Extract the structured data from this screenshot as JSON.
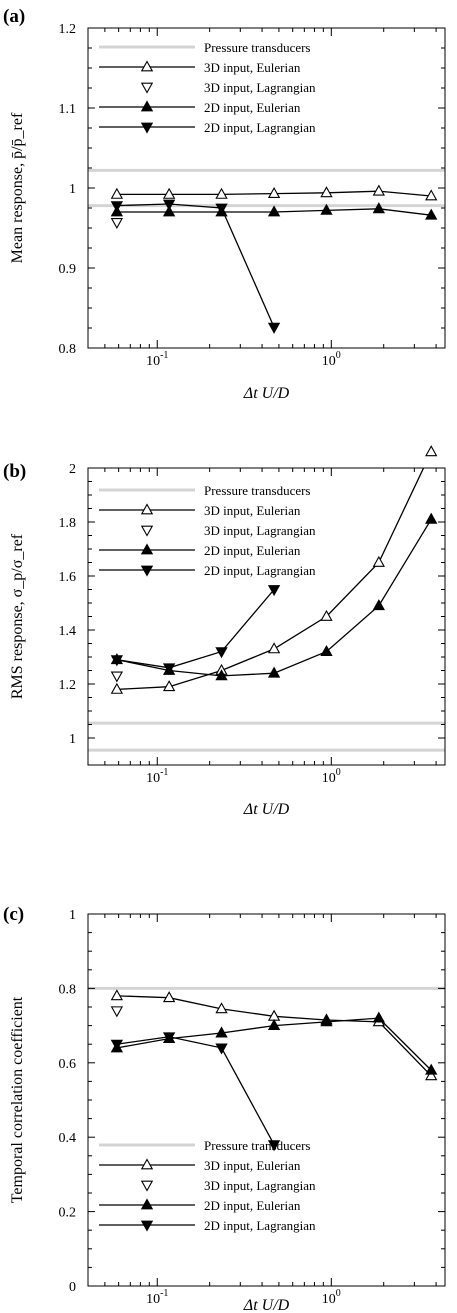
{
  "chart_data": [
    {
      "type": "line",
      "panel_label": "(a)",
      "xlabel": "Δt U/D",
      "ylabel": "Mean response, p̄/p̄_ref",
      "x_scale": "log",
      "xlim": [
        0.04,
        4.5
      ],
      "ylim": [
        0.8,
        1.2
      ],
      "yticks": [
        "0.8",
        "0.9",
        "1",
        "1.1",
        "1.2"
      ],
      "xticks": [
        {
          "value": 0.1,
          "base": "10",
          "exp": "-1"
        },
        {
          "value": 1,
          "base": "10",
          "exp": "0"
        }
      ],
      "reference_lines": [
        1.022,
        0.978
      ],
      "legend_position": "upper-left",
      "series": [
        {
          "name": "Pressure transducers",
          "marker": "none",
          "x": [],
          "y": []
        },
        {
          "name": "3D input, Eulerian",
          "marker": "triangle-up-open",
          "x": [
            0.0586,
            0.117,
            0.234,
            0.469,
            0.938,
            1.875,
            3.75
          ],
          "y": [
            0.992,
            0.992,
            0.992,
            0.993,
            0.994,
            0.996,
            0.99
          ]
        },
        {
          "name": "3D input, Lagrangian",
          "marker": "triangle-down-open",
          "x": [
            0.0586
          ],
          "y": [
            0.957
          ]
        },
        {
          "name": "2D input, Eulerian",
          "marker": "triangle-up-filled",
          "x": [
            0.0586,
            0.117,
            0.234,
            0.469,
            0.938,
            1.875,
            3.75
          ],
          "y": [
            0.97,
            0.97,
            0.97,
            0.97,
            0.972,
            0.974,
            0.966
          ]
        },
        {
          "name": "2D input, Lagrangian",
          "marker": "triangle-down-filled",
          "x": [
            0.0586,
            0.117,
            0.234,
            0.469
          ],
          "y": [
            0.978,
            0.98,
            0.975,
            0.826
          ]
        }
      ]
    },
    {
      "type": "line",
      "panel_label": "(b)",
      "xlabel": "Δt U/D",
      "ylabel": "RMS response, σ_p/σ_ref",
      "x_scale": "log",
      "xlim": [
        0.04,
        4.5
      ],
      "ylim": [
        0.9,
        2.0
      ],
      "yticks": [
        "1",
        "1.2",
        "1.4",
        "1.6",
        "1.8",
        "2"
      ],
      "xticks": [
        {
          "value": 0.1,
          "base": "10",
          "exp": "-1"
        },
        {
          "value": 1,
          "base": "10",
          "exp": "0"
        }
      ],
      "reference_lines": [
        1.055,
        0.955
      ],
      "legend_position": "upper-left",
      "series": [
        {
          "name": "Pressure transducers",
          "marker": "none",
          "x": [],
          "y": []
        },
        {
          "name": "3D input, Eulerian",
          "marker": "triangle-up-open",
          "x": [
            0.0586,
            0.117,
            0.234,
            0.469,
            0.938,
            1.875,
            3.75
          ],
          "y": [
            1.18,
            1.19,
            1.25,
            1.33,
            1.45,
            1.65,
            2.06
          ]
        },
        {
          "name": "3D input, Lagrangian",
          "marker": "triangle-down-open",
          "x": [
            0.0586
          ],
          "y": [
            1.23
          ]
        },
        {
          "name": "2D input, Eulerian",
          "marker": "triangle-up-filled",
          "x": [
            0.0586,
            0.117,
            0.234,
            0.469,
            0.938,
            1.875,
            3.75
          ],
          "y": [
            1.29,
            1.25,
            1.23,
            1.24,
            1.32,
            1.49,
            1.81
          ]
        },
        {
          "name": "2D input, Lagrangian",
          "marker": "triangle-down-filled",
          "x": [
            0.0586,
            0.117,
            0.234,
            0.469
          ],
          "y": [
            1.29,
            1.26,
            1.32,
            1.55
          ]
        }
      ]
    },
    {
      "type": "line",
      "panel_label": "(c)",
      "xlabel": "Δt U/D",
      "ylabel": "Temporal correlation coefficient",
      "x_scale": "log",
      "xlim": [
        0.04,
        4.5
      ],
      "ylim": [
        0.0,
        1.0
      ],
      "yticks": [
        "0",
        "0.2",
        "0.4",
        "0.6",
        "0.8",
        "1"
      ],
      "xticks": [
        {
          "value": 0.1,
          "base": "10",
          "exp": "-1"
        },
        {
          "value": 1,
          "base": "10",
          "exp": "0"
        }
      ],
      "reference_lines": [
        0.8
      ],
      "legend_position": "lower-left",
      "series": [
        {
          "name": "Pressure transducers",
          "marker": "none",
          "x": [],
          "y": []
        },
        {
          "name": "3D input, Eulerian",
          "marker": "triangle-up-open",
          "x": [
            0.0586,
            0.117,
            0.234,
            0.469,
            0.938,
            1.875,
            3.75
          ],
          "y": [
            0.78,
            0.775,
            0.745,
            0.725,
            0.715,
            0.71,
            0.565
          ]
        },
        {
          "name": "3D input, Lagrangian",
          "marker": "triangle-down-open",
          "x": [
            0.0586
          ],
          "y": [
            0.74
          ]
        },
        {
          "name": "2D input, Eulerian",
          "marker": "triangle-up-filled",
          "x": [
            0.0586,
            0.117,
            0.234,
            0.469,
            0.938,
            1.875,
            3.75
          ],
          "y": [
            0.64,
            0.665,
            0.68,
            0.7,
            0.71,
            0.72,
            0.58
          ]
        },
        {
          "name": "2D input, Lagrangian",
          "marker": "triangle-down-filled",
          "x": [
            0.0586,
            0.117,
            0.234,
            0.469
          ],
          "y": [
            0.65,
            0.67,
            0.64,
            0.38
          ]
        }
      ]
    }
  ]
}
